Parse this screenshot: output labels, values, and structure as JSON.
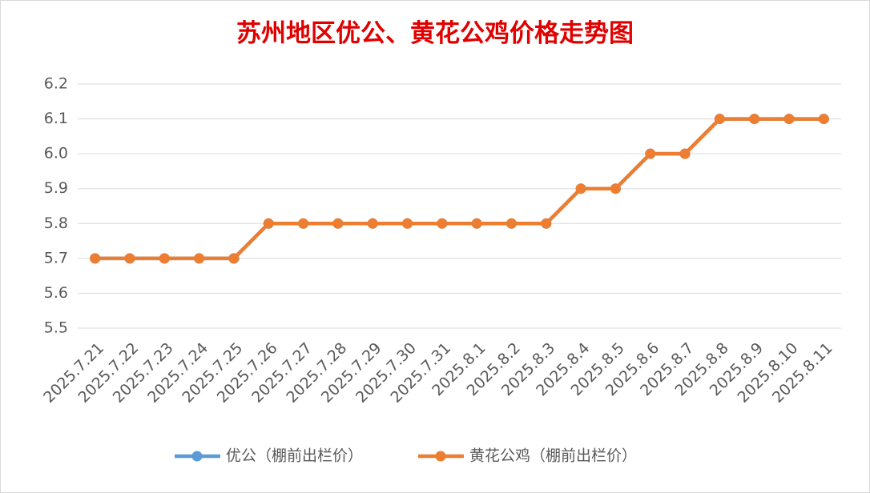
{
  "chart_data": {
    "type": "line",
    "title": "苏州地区优公、黄花公鸡价格走势图",
    "categories": [
      "2025.7.21",
      "2025.7.22",
      "2025.7.23",
      "2025.7.24",
      "2025.7.25",
      "2025.7.26",
      "2025.7.27",
      "2025.7.28",
      "2025.7.29",
      "2025.7.30",
      "2025.7.31",
      "2025.8.1",
      "2025.8.2",
      "2025.8.3",
      "2025.8.4",
      "2025.8.5",
      "2025.8.6",
      "2025.8.7",
      "2025.8.8",
      "2025.8.9",
      "2025.8.10",
      "2025.8.11"
    ],
    "series": [
      {
        "name": "优公（棚前出栏价）",
        "color": "#5b9bd5",
        "values": [
          5.7,
          5.7,
          5.7,
          5.7,
          5.7,
          5.8,
          5.8,
          5.8,
          5.8,
          5.8,
          5.8,
          5.8,
          5.8,
          5.8,
          5.9,
          5.9,
          6.0,
          6.0,
          6.1,
          6.1,
          6.1,
          6.1
        ]
      },
      {
        "name": "黄花公鸡（棚前出栏价）",
        "color": "#ed7d31",
        "values": [
          5.7,
          5.7,
          5.7,
          5.7,
          5.7,
          5.8,
          5.8,
          5.8,
          5.8,
          5.8,
          5.8,
          5.8,
          5.8,
          5.8,
          5.9,
          5.9,
          6.0,
          6.0,
          6.1,
          6.1,
          6.1,
          6.1
        ]
      }
    ],
    "ylim": [
      5.5,
      6.2
    ],
    "yticks": [
      5.5,
      5.6,
      5.7,
      5.8,
      5.9,
      {
        "value": 6,
        "label": "6.0"
      },
      6.1,
      6.2
    ],
    "grid": true,
    "legend": "bottom"
  }
}
